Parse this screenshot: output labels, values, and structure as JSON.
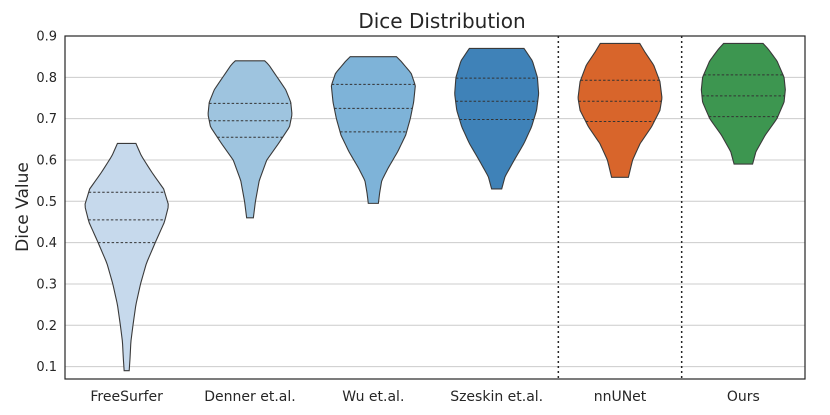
{
  "chart_data": {
    "type": "violin",
    "title": "Dice Distribution",
    "xlabel": "",
    "ylabel": "Dice Value",
    "ylim": [
      0.07,
      0.9
    ],
    "yticks": [
      "0.1",
      "0.2",
      "0.3",
      "0.4",
      "0.5",
      "0.6",
      "0.7",
      "0.8",
      "0.9"
    ],
    "grid": true,
    "separators_after": [
      "Szeskin et.al.",
      "nnUNet"
    ],
    "categories": [
      "FreeSurfer",
      "Denner et.al.",
      "Wu et.al.",
      "Szeskin et.al.",
      "nnUNet",
      "Ours"
    ],
    "violins": [
      {
        "category": "FreeSurfer",
        "color": "#c6d9ec",
        "min": 0.09,
        "max": 0.64,
        "q1": 0.4,
        "median": 0.455,
        "q3": 0.522,
        "density": [
          [
            0.09,
            0.06
          ],
          [
            0.12,
            0.08
          ],
          [
            0.16,
            0.1
          ],
          [
            0.2,
            0.15
          ],
          [
            0.25,
            0.22
          ],
          [
            0.3,
            0.33
          ],
          [
            0.35,
            0.47
          ],
          [
            0.4,
            0.68
          ],
          [
            0.45,
            0.9
          ],
          [
            0.49,
            1.0
          ],
          [
            0.53,
            0.88
          ],
          [
            0.57,
            0.6
          ],
          [
            0.61,
            0.35
          ],
          [
            0.64,
            0.22
          ]
        ]
      },
      {
        "category": "Denner et.al.",
        "color": "#9ec4df",
        "min": 0.46,
        "max": 0.84,
        "q1": 0.655,
        "median": 0.695,
        "q3": 0.737,
        "density": [
          [
            0.46,
            0.08
          ],
          [
            0.5,
            0.13
          ],
          [
            0.55,
            0.22
          ],
          [
            0.6,
            0.4
          ],
          [
            0.64,
            0.68
          ],
          [
            0.68,
            0.94
          ],
          [
            0.71,
            1.0
          ],
          [
            0.74,
            0.97
          ],
          [
            0.77,
            0.85
          ],
          [
            0.8,
            0.65
          ],
          [
            0.83,
            0.45
          ],
          [
            0.84,
            0.35
          ]
        ]
      },
      {
        "category": "Wu et.al.",
        "color": "#7eb3d8",
        "min": 0.495,
        "max": 0.85,
        "q1": 0.668,
        "median": 0.725,
        "q3": 0.783,
        "density": [
          [
            0.495,
            0.12
          ],
          [
            0.52,
            0.15
          ],
          [
            0.55,
            0.2
          ],
          [
            0.58,
            0.35
          ],
          [
            0.62,
            0.58
          ],
          [
            0.66,
            0.77
          ],
          [
            0.7,
            0.88
          ],
          [
            0.74,
            0.96
          ],
          [
            0.78,
            1.0
          ],
          [
            0.81,
            0.9
          ],
          [
            0.84,
            0.65
          ],
          [
            0.85,
            0.55
          ]
        ]
      },
      {
        "category": "Szeskin et.al.",
        "color": "#3f82b8",
        "min": 0.53,
        "max": 0.87,
        "q1": 0.698,
        "median": 0.742,
        "q3": 0.798,
        "density": [
          [
            0.53,
            0.12
          ],
          [
            0.56,
            0.2
          ],
          [
            0.6,
            0.42
          ],
          [
            0.64,
            0.65
          ],
          [
            0.68,
            0.83
          ],
          [
            0.72,
            0.95
          ],
          [
            0.76,
            1.0
          ],
          [
            0.8,
            0.97
          ],
          [
            0.84,
            0.85
          ],
          [
            0.87,
            0.65
          ]
        ]
      },
      {
        "category": "nnUNet",
        "color": "#d8652b",
        "min": 0.558,
        "max": 0.882,
        "q1": 0.693,
        "median": 0.742,
        "q3": 0.793,
        "density": [
          [
            0.558,
            0.2
          ],
          [
            0.6,
            0.3
          ],
          [
            0.64,
            0.48
          ],
          [
            0.68,
            0.75
          ],
          [
            0.72,
            0.95
          ],
          [
            0.75,
            1.0
          ],
          [
            0.79,
            0.95
          ],
          [
            0.83,
            0.8
          ],
          [
            0.86,
            0.6
          ],
          [
            0.882,
            0.47
          ]
        ]
      },
      {
        "category": "Ours",
        "color": "#3d9650",
        "min": 0.59,
        "max": 0.882,
        "q1": 0.705,
        "median": 0.755,
        "q3": 0.806,
        "density": [
          [
            0.59,
            0.22
          ],
          [
            0.62,
            0.3
          ],
          [
            0.66,
            0.52
          ],
          [
            0.7,
            0.8
          ],
          [
            0.74,
            0.97
          ],
          [
            0.77,
            1.0
          ],
          [
            0.8,
            0.97
          ],
          [
            0.84,
            0.8
          ],
          [
            0.87,
            0.58
          ],
          [
            0.882,
            0.47
          ]
        ]
      }
    ]
  }
}
